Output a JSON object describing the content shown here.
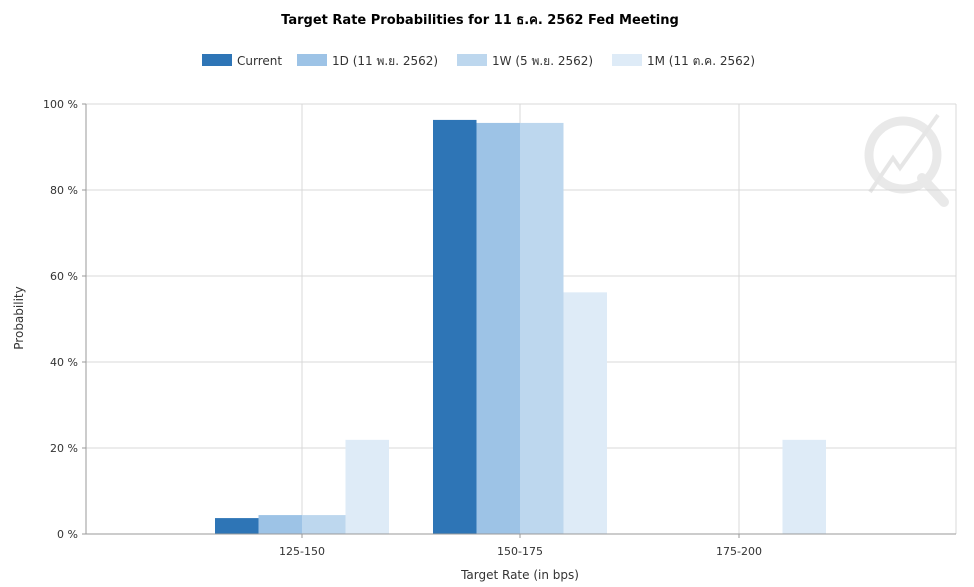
{
  "chart_data": {
    "type": "bar",
    "title": "Target Rate Probabilities for 11 ธ.ค. 2562 Fed Meeting",
    "xlabel": "Target Rate (in bps)",
    "ylabel": "Probability",
    "categories": [
      "125-150",
      "150-175",
      "175-200"
    ],
    "ylim": [
      0,
      100
    ],
    "yticks": [
      0,
      20,
      40,
      60,
      80,
      100
    ],
    "ytick_suffix": " %",
    "grid": true,
    "legend_position": "top",
    "series": [
      {
        "name": "Current",
        "color": "#2e75b6",
        "values": [
          3.7,
          96.3,
          0
        ]
      },
      {
        "name": "1D (11 พ.ย. 2562)",
        "color": "#9dc3e6",
        "values": [
          4.4,
          95.6,
          0
        ]
      },
      {
        "name": "1W (5 พ.ย. 2562)",
        "color": "#bdd7ee",
        "values": [
          4.4,
          95.6,
          0
        ]
      },
      {
        "name": "1M (11 ต.ค. 2562)",
        "color": "#deebf7",
        "values": [
          21.9,
          56.2,
          21.9
        ]
      }
    ]
  }
}
